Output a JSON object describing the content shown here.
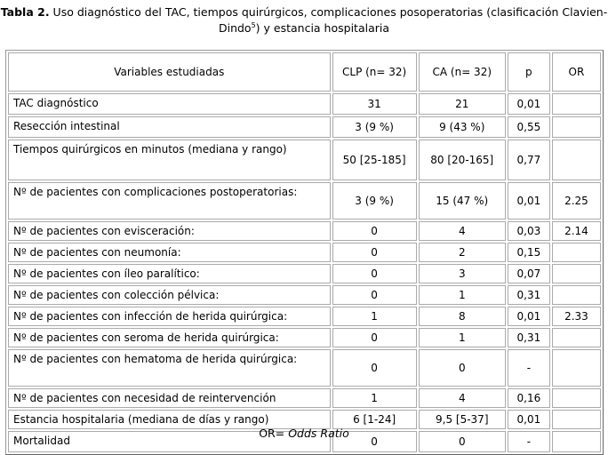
{
  "caption": {
    "label": "Tabla 2.",
    "text_a": " Uso diagnóstico del TAC, tiempos quirúrgicos, complicaciones posoperatorias (clasificación Clavien-Dindo",
    "sup": "5",
    "text_b": ") y estancia hospitalaria"
  },
  "table": {
    "headers": [
      "Variables estudiadas",
      "CLP (n= 32)",
      "CA (n= 32)",
      "p",
      "OR"
    ],
    "rows": [
      {
        "variable": "TAC diagnóstico",
        "clp": "31",
        "ca": "21",
        "p": "0,01",
        "or": "",
        "h": "h1b"
      },
      {
        "variable": "Resección intestinal",
        "clp": "3 (9 %)",
        "ca": "9 (43 %)",
        "p": "0,55",
        "or": "",
        "h": "h1b"
      },
      {
        "variable": "Tiempos quirúrgicos en minutos (mediana y rango)",
        "clp": "50 [25-185]",
        "ca": "80 [20-165]",
        "p": "0,77",
        "or": "",
        "h": "h3"
      },
      {
        "variable": "Nº de pacientes con complicaciones postoperatorias:",
        "clp": "3 (9 %)",
        "ca": "15 (47 %)",
        "p": "0,01",
        "or": "2.25",
        "h": "h2"
      },
      {
        "variable": "Nº de pacientes con evisceración:",
        "clp": "0",
        "ca": "4",
        "p": "0,03",
        "or": "2.14",
        "h": "h1"
      },
      {
        "variable": "Nº de pacientes con neumonía:",
        "clp": "0",
        "ca": "2",
        "p": "0,15",
        "or": "",
        "h": "h1"
      },
      {
        "variable": "Nº de pacientes con íleo paralítico:",
        "clp": "0",
        "ca": "3",
        "p": "0,07",
        "or": "",
        "h": "h1"
      },
      {
        "variable": "Nº de pacientes con colección pélvica:",
        "clp": "0",
        "ca": "1",
        "p": "0,31",
        "or": "",
        "h": "h1"
      },
      {
        "variable": "Nº de pacientes con infección de herida quirúrgica:",
        "clp": "1",
        "ca": "8",
        "p": "0,01",
        "or": "2.33",
        "h": "h1"
      },
      {
        "variable": "Nº de pacientes con seroma de herida quirúrgica:",
        "clp": "0",
        "ca": "1",
        "p": "0,31",
        "or": "",
        "h": "h1"
      },
      {
        "variable": "Nº de pacientes con hematoma de herida quirúrgica:",
        "clp": "0",
        "ca": "0",
        "p": "-",
        "or": "",
        "h": "h2"
      },
      {
        "variable": "Nº de pacientes con necesidad de reintervención",
        "clp": "1",
        "ca": "4",
        "p": "0,16",
        "or": "",
        "h": "h1"
      },
      {
        "variable": "Estancia hospitalaria (mediana de días y rango)",
        "clp": "6 [1-24]",
        "ca": "9,5 [5-37]",
        "p": "0,01",
        "or": "",
        "h": "h1"
      },
      {
        "variable": "Mortalidad",
        "clp": "0",
        "ca": "0",
        "p": "-",
        "or": "",
        "h": "h1b"
      }
    ]
  },
  "footnote": {
    "prefix": "OR= ",
    "italic": "Odds Ratio"
  }
}
